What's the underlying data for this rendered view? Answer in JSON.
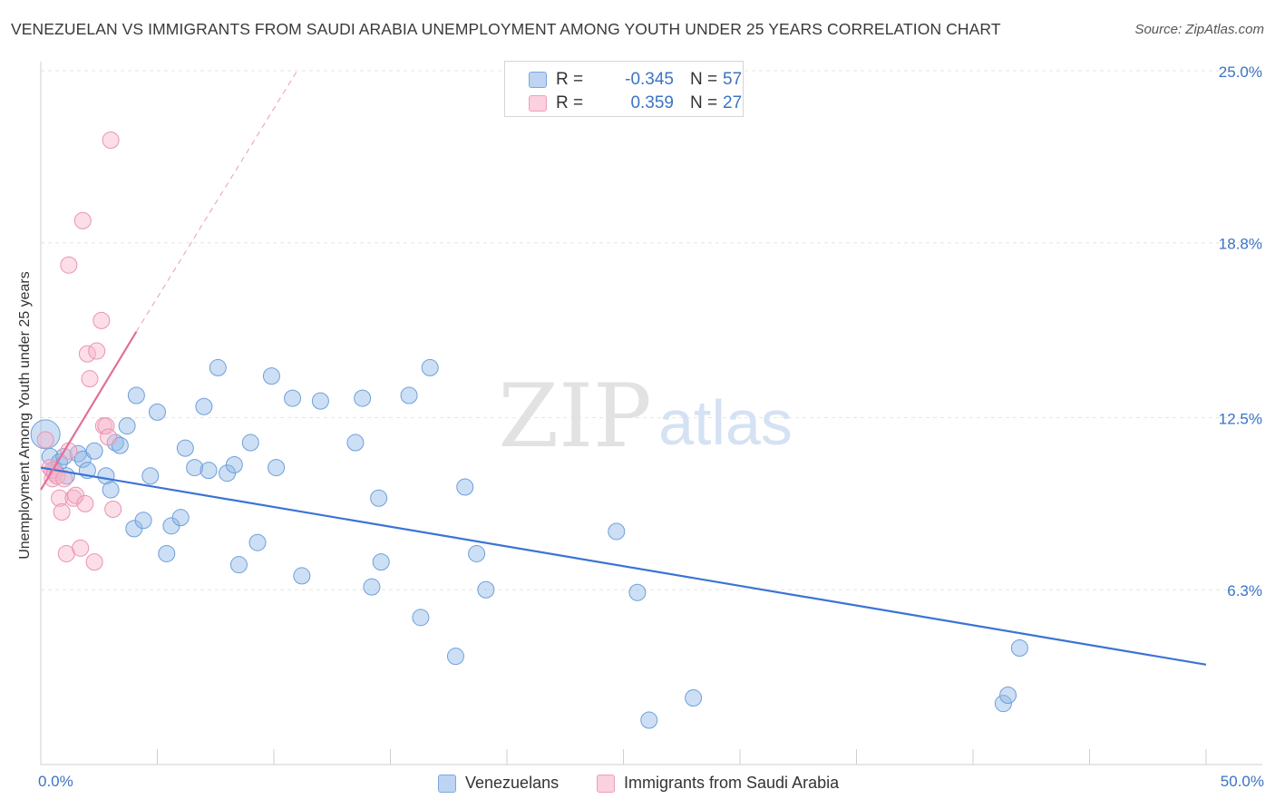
{
  "chart_data": {
    "type": "scatter",
    "title": "VENEZUELAN VS IMMIGRANTS FROM SAUDI ARABIA UNEMPLOYMENT AMONG YOUTH UNDER 25 YEARS CORRELATION CHART",
    "source": "Source: ZipAtlas.com",
    "xlabel": "",
    "ylabel": "Unemployment Among Youth under 25 years",
    "xlim": [
      0,
      50
    ],
    "ylim": [
      0,
      25
    ],
    "x_tick_labels": [
      "0.0%",
      "50.0%"
    ],
    "y_ticks": [
      6.3,
      12.5,
      18.8,
      25.0
    ],
    "y_tick_labels": [
      "6.3%",
      "12.5%",
      "18.8%",
      "25.0%"
    ],
    "grid": true,
    "watermark": "ZIPatlas",
    "legend_position": "top-center",
    "legend_stats": [
      {
        "r_label": "R =",
        "r_value": "-0.345",
        "n_label": "N =",
        "n_value": "57"
      },
      {
        "r_label": "R =",
        "r_value": "0.359",
        "n_label": "N =",
        "n_value": "27"
      }
    ],
    "series": [
      {
        "name": "Venezuelans",
        "color": "#8fb8e8",
        "stroke": "#6f9fd8",
        "trend_color": "#3b73d4",
        "trend": {
          "x0": 0.0,
          "y0": 10.7,
          "x1": 50.0,
          "y1": 3.6,
          "dashed_extension": false
        },
        "x": [
          0.2,
          0.4,
          0.6,
          0.8,
          1.0,
          1.1,
          1.6,
          1.8,
          2.0,
          2.3,
          2.8,
          3.0,
          3.2,
          3.4,
          3.7,
          4.0,
          4.1,
          4.4,
          4.7,
          5.0,
          5.4,
          5.6,
          6.0,
          6.2,
          6.6,
          7.0,
          7.2,
          7.6,
          8.0,
          8.3,
          8.5,
          9.0,
          9.3,
          9.9,
          10.1,
          10.8,
          11.2,
          12.0,
          13.5,
          13.8,
          14.2,
          14.5,
          14.6,
          15.8,
          16.3,
          16.7,
          17.8,
          18.2,
          18.7,
          19.1,
          24.7,
          25.6,
          26.1,
          28.0,
          41.3,
          41.5,
          42.0
        ],
        "y": [
          11.9,
          11.1,
          10.6,
          10.9,
          11.1,
          10.4,
          11.2,
          11.0,
          10.6,
          11.3,
          10.4,
          9.9,
          11.6,
          11.5,
          12.2,
          8.5,
          13.3,
          8.8,
          10.4,
          12.7,
          7.6,
          8.6,
          8.9,
          11.4,
          10.7,
          12.9,
          10.6,
          14.3,
          10.5,
          10.8,
          7.2,
          11.6,
          8.0,
          14.0,
          10.7,
          13.2,
          6.8,
          13.1,
          11.6,
          13.2,
          6.4,
          9.6,
          7.3,
          13.3,
          5.3,
          14.3,
          3.9,
          10.0,
          7.6,
          6.3,
          8.4,
          6.2,
          1.6,
          2.4,
          2.2,
          2.5,
          4.2
        ],
        "sizes": [
          16,
          9,
          9,
          9,
          9,
          9,
          9,
          9,
          9,
          9,
          9,
          9,
          9,
          9,
          9,
          9,
          9,
          9,
          9,
          9,
          9,
          9,
          9,
          9,
          9,
          9,
          9,
          9,
          9,
          9,
          9,
          9,
          9,
          9,
          9,
          9,
          9,
          9,
          9,
          9,
          9,
          9,
          9,
          9,
          9,
          9,
          9,
          9,
          9,
          9,
          9,
          9,
          9,
          9,
          9,
          9,
          9
        ]
      },
      {
        "name": "Immigrants from Saudi Arabia",
        "color": "#f7b6cb",
        "stroke": "#eb92b0",
        "trend_color": "#e0709a",
        "trend": {
          "x0": 0.0,
          "y0": 9.9,
          "x1": 4.1,
          "y1": 15.6,
          "dashed_to": {
            "x": 11.0,
            "y": 25.0
          }
        },
        "x": [
          0.2,
          0.4,
          0.5,
          0.5,
          0.6,
          0.7,
          0.8,
          0.9,
          1.0,
          1.1,
          1.2,
          1.2,
          1.4,
          1.5,
          1.7,
          1.8,
          1.9,
          2.0,
          2.1,
          2.3,
          2.4,
          2.6,
          2.7,
          2.8,
          2.9,
          3.0,
          3.1
        ],
        "y": [
          11.7,
          10.7,
          10.3,
          10.6,
          10.5,
          10.4,
          9.6,
          9.1,
          10.3,
          7.6,
          11.3,
          18.0,
          9.6,
          9.7,
          7.8,
          19.6,
          9.4,
          14.8,
          13.9,
          7.3,
          14.9,
          16.0,
          12.2,
          12.2,
          11.8,
          22.5,
          9.2
        ],
        "sizes": [
          9,
          9,
          9,
          9,
          9,
          9,
          9,
          9,
          9,
          9,
          9,
          9,
          9,
          9,
          9,
          9,
          9,
          9,
          9,
          9,
          9,
          9,
          9,
          9,
          9,
          9,
          9
        ]
      }
    ]
  }
}
